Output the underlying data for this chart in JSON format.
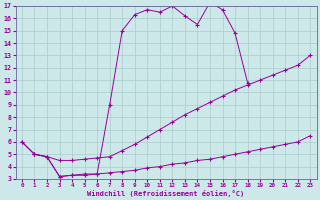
{
  "xlabel": "Windchill (Refroidissement éolien,°C)",
  "bg_color": "#cce8e8",
  "line_color": "#990099",
  "grid_color": "#aacccc",
  "xlim": [
    -0.5,
    23.5
  ],
  "ylim": [
    3,
    17
  ],
  "xticks": [
    0,
    1,
    2,
    3,
    4,
    5,
    6,
    7,
    8,
    9,
    10,
    11,
    12,
    13,
    14,
    15,
    16,
    17,
    18,
    19,
    20,
    21,
    22,
    23
  ],
  "yticks": [
    3,
    4,
    5,
    6,
    7,
    8,
    9,
    10,
    11,
    12,
    13,
    14,
    15,
    16,
    17
  ],
  "line_top_x": [
    1,
    2,
    3,
    4,
    5,
    6,
    7,
    8,
    9,
    10,
    11,
    12,
    13,
    14,
    15,
    16,
    17,
    18
  ],
  "line_top_y": [
    5.0,
    4.8,
    3.2,
    3.3,
    3.3,
    3.4,
    9.0,
    15.0,
    16.3,
    16.7,
    16.5,
    17.0,
    16.2,
    15.5,
    17.3,
    16.7,
    14.8,
    10.8
  ],
  "line_mid_x": [
    0,
    1,
    2,
    3,
    4,
    5,
    6,
    7,
    8,
    9,
    10,
    11,
    12,
    13,
    14,
    15,
    16,
    17,
    18,
    19,
    20,
    21,
    22,
    23
  ],
  "line_mid_y": [
    6.0,
    5.0,
    4.8,
    4.5,
    4.5,
    4.6,
    4.7,
    4.8,
    5.3,
    5.8,
    6.4,
    7.0,
    7.6,
    8.2,
    8.7,
    9.2,
    9.7,
    10.2,
    10.6,
    11.0,
    11.4,
    11.8,
    12.2,
    13.0
  ],
  "line_bot_x": [
    0,
    1,
    2,
    3,
    4,
    5,
    6,
    7,
    8,
    9,
    10,
    11,
    12,
    13,
    14,
    15,
    16,
    17,
    18,
    19,
    20,
    21,
    22,
    23
  ],
  "line_bot_y": [
    6.0,
    5.0,
    4.8,
    3.2,
    3.3,
    3.4,
    3.4,
    3.5,
    3.6,
    3.7,
    3.9,
    4.0,
    4.2,
    4.3,
    4.5,
    4.6,
    4.8,
    5.0,
    5.2,
    5.4,
    5.6,
    5.8,
    6.0,
    6.5
  ]
}
